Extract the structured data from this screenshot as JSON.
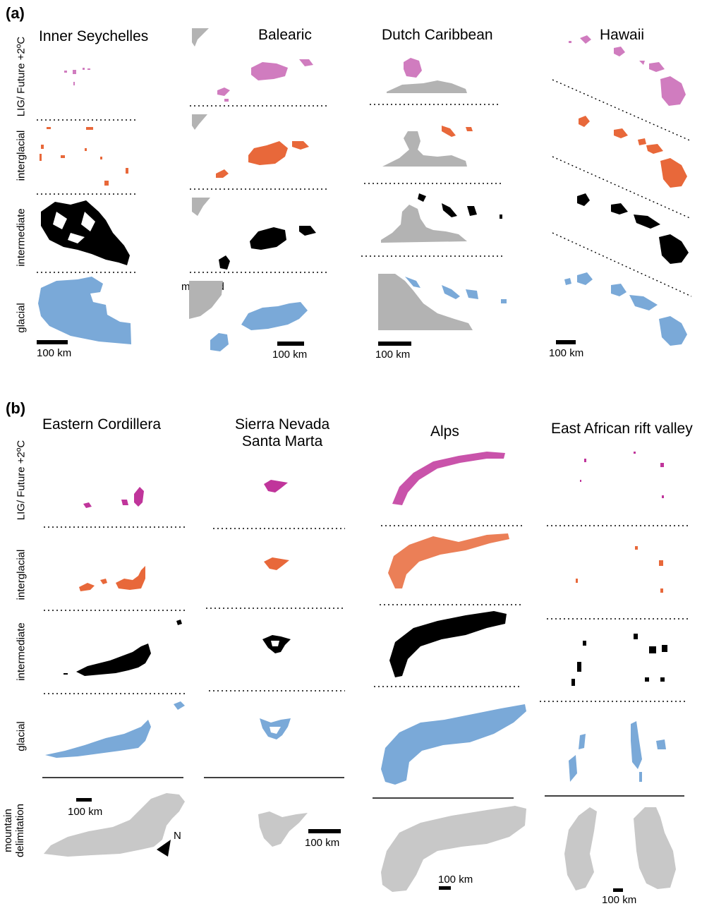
{
  "panel_a": {
    "label": "(a)",
    "columns": [
      "Inner Seychelles",
      "Balearic",
      "Dutch Caribbean",
      "Hawaii"
    ],
    "rows": [
      "LIG/ Future +2ºC",
      "interglacial",
      "intermediate",
      "glacial"
    ],
    "scale_label": "100 km",
    "mainland_label": "mainland"
  },
  "panel_b": {
    "label": "(b)",
    "columns": [
      "Eastern Cordillera",
      "Sierra Nevada\nSanta Marta",
      "Alps",
      "East African rift valley"
    ],
    "rows": [
      "LIG/ Future +2ºC",
      "interglacial",
      "intermediate",
      "glacial",
      "mountain\ndelimitation"
    ],
    "scale_label": "100 km",
    "north_label": "N"
  },
  "colors": {
    "lig": "#d07cbf",
    "lig_mountain": "#c0359b",
    "interglacial": "#e8683a",
    "intermediate": "#000000",
    "glacial": "#7aa9d8",
    "mainland": "#b3b3b3",
    "delimitation": "#c8c8c8"
  }
}
